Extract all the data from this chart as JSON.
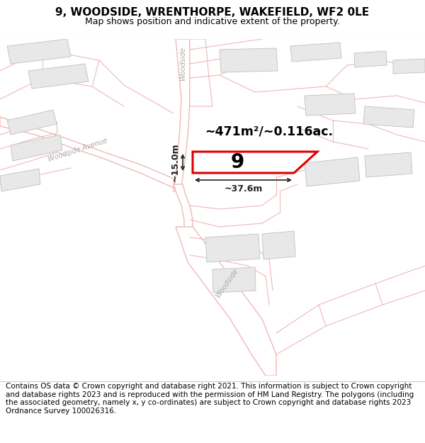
{
  "title": "9, WOODSIDE, WRENTHORPE, WAKEFIELD, WF2 0LE",
  "subtitle": "Map shows position and indicative extent of the property.",
  "footer": "Contains OS data © Crown copyright and database right 2021. This information is subject to Crown copyright and database rights 2023 and is reproduced with the permission of HM Land Registry. The polygons (including the associated geometry, namely x, y co-ordinates) are subject to Crown copyright and database rights 2023 Ordnance Survey 100026316.",
  "area_label": "~471m²/~0.116ac.",
  "width_label": "~37.6m",
  "height_label": "~15.0m",
  "plot_number": "9",
  "map_bg": "#f8f7f7",
  "road_fill": "#ffffff",
  "road_line": "#f0b8b8",
  "road_edge": "#d4a0a0",
  "building_fill": "#e8e8e8",
  "building_edge": "#c0c0c0",
  "plot_fill": "#ffffff",
  "plot_edge": "#dd0000",
  "title_fontsize": 11,
  "subtitle_fontsize": 9,
  "footer_fontsize": 7.5,
  "label_color": "#aaaaaa",
  "dim_color": "#222222"
}
